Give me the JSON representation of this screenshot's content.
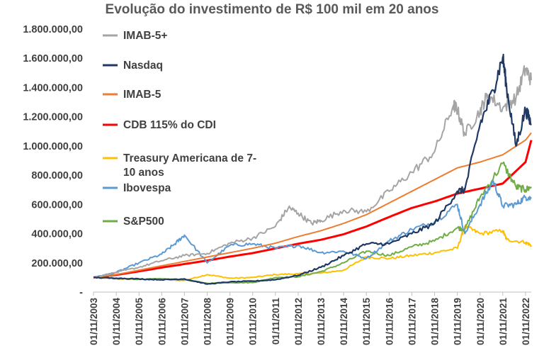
{
  "chart_data": {
    "type": "line",
    "title": "Evolução do investimento de R$ 100 mil em 20 anos",
    "xlabel": "",
    "ylabel": "",
    "x_ticks": [
      "01/11/2003",
      "01/11/2004",
      "01/11/2005",
      "01/11/2006",
      "01/11/2007",
      "01/11/2008",
      "01/11/2009",
      "01/11/2010",
      "01/11/2011",
      "01/11/2012",
      "01/11/2013",
      "01/11/2014",
      "01/11/2015",
      "01/11/2016",
      "01/11/2017",
      "01/11/2018",
      "01/11/2019",
      "01/11/2020",
      "01/11/2021",
      "01/11/2022"
    ],
    "y_ticks": [
      {
        "value": 0,
        "label": "-"
      },
      {
        "value": 200000,
        "label": "200.000,00"
      },
      {
        "value": 400000,
        "label": "400.000,00"
      },
      {
        "value": 600000,
        "label": "600.000,00"
      },
      {
        "value": 800000,
        "label": "800.000,00"
      },
      {
        "value": 1000000,
        "label": "1.000.000,00"
      },
      {
        "value": 1200000,
        "label": "1.200.000,00"
      },
      {
        "value": 1400000,
        "label": "1.400.000,00"
      },
      {
        "value": 1600000,
        "label": "1.600.000,00"
      },
      {
        "value": 1800000,
        "label": "1.800.000,00"
      }
    ],
    "ylim": [
      0,
      1800000
    ],
    "xlim": [
      "2003-11-01",
      "2023-02-01"
    ],
    "grid": false,
    "legend_position": "top-left",
    "series": [
      {
        "name": "IMAB-5+",
        "color": "#a5a5a5",
        "width": 2,
        "points": [
          [
            "2003-11-01",
            100000
          ],
          [
            "2004-11-01",
            135000
          ],
          [
            "2005-11-01",
            170000
          ],
          [
            "2006-11-01",
            215000
          ],
          [
            "2007-11-01",
            250000
          ],
          [
            "2008-11-01",
            265000
          ],
          [
            "2009-11-01",
            335000
          ],
          [
            "2010-11-01",
            370000
          ],
          [
            "2011-11-01",
            450000
          ],
          [
            "2012-06-01",
            580000
          ],
          [
            "2012-11-01",
            540000
          ],
          [
            "2013-06-01",
            470000
          ],
          [
            "2013-11-01",
            490000
          ],
          [
            "2014-11-01",
            560000
          ],
          [
            "2015-11-01",
            550000
          ],
          [
            "2016-11-01",
            690000
          ],
          [
            "2017-11-01",
            820000
          ],
          [
            "2018-11-01",
            960000
          ],
          [
            "2019-09-01",
            1280000
          ],
          [
            "2019-11-01",
            1250000
          ],
          [
            "2020-03-01",
            1080000
          ],
          [
            "2020-11-01",
            1240000
          ],
          [
            "2021-03-01",
            1350000
          ],
          [
            "2021-11-01",
            1260000
          ],
          [
            "2022-06-01",
            1330000
          ],
          [
            "2022-11-01",
            1530000
          ],
          [
            "2023-02-01",
            1450000
          ]
        ]
      },
      {
        "name": "Nasdaq",
        "color": "#203864",
        "width": 2.2,
        "points": [
          [
            "2003-11-01",
            100000
          ],
          [
            "2004-11-01",
            95000
          ],
          [
            "2005-11-01",
            90000
          ],
          [
            "2006-11-01",
            85000
          ],
          [
            "2007-11-01",
            90000
          ],
          [
            "2008-11-01",
            55000
          ],
          [
            "2009-11-01",
            70000
          ],
          [
            "2010-11-01",
            75000
          ],
          [
            "2011-11-01",
            85000
          ],
          [
            "2012-11-01",
            115000
          ],
          [
            "2013-11-01",
            170000
          ],
          [
            "2014-11-01",
            250000
          ],
          [
            "2015-11-01",
            330000
          ],
          [
            "2016-11-01",
            330000
          ],
          [
            "2017-11-01",
            400000
          ],
          [
            "2018-11-01",
            470000
          ],
          [
            "2019-11-01",
            690000
          ],
          [
            "2020-03-01",
            700000
          ],
          [
            "2020-11-01",
            1150000
          ],
          [
            "2021-06-01",
            1380000
          ],
          [
            "2021-11-01",
            1610000
          ],
          [
            "2022-01-01",
            1400000
          ],
          [
            "2022-06-01",
            1000000
          ],
          [
            "2022-11-01",
            1250000
          ],
          [
            "2023-02-01",
            1150000
          ]
        ]
      },
      {
        "name": "IMAB-5",
        "color": "#ed7d31",
        "width": 2,
        "points": [
          [
            "2003-11-01",
            100000
          ],
          [
            "2004-11-01",
            120000
          ],
          [
            "2005-11-01",
            150000
          ],
          [
            "2006-11-01",
            180000
          ],
          [
            "2007-11-01",
            210000
          ],
          [
            "2008-11-01",
            240000
          ],
          [
            "2009-11-01",
            270000
          ],
          [
            "2010-11-01",
            300000
          ],
          [
            "2011-11-01",
            335000
          ],
          [
            "2012-11-01",
            380000
          ],
          [
            "2013-11-01",
            420000
          ],
          [
            "2014-11-01",
            470000
          ],
          [
            "2015-11-01",
            530000
          ],
          [
            "2016-11-01",
            610000
          ],
          [
            "2017-11-01",
            690000
          ],
          [
            "2018-11-01",
            770000
          ],
          [
            "2019-11-01",
            850000
          ],
          [
            "2020-11-01",
            890000
          ],
          [
            "2021-11-01",
            940000
          ],
          [
            "2022-11-01",
            1040000
          ],
          [
            "2023-02-01",
            1090000
          ]
        ]
      },
      {
        "name": "CDB 115% do CDI",
        "color": "#ff0000",
        "width": 3,
        "points": [
          [
            "2003-11-01",
            100000
          ],
          [
            "2004-11-01",
            118000
          ],
          [
            "2005-11-01",
            142000
          ],
          [
            "2006-11-01",
            168000
          ],
          [
            "2007-11-01",
            192000
          ],
          [
            "2008-11-01",
            216000
          ],
          [
            "2009-11-01",
            243000
          ],
          [
            "2010-11-01",
            267000
          ],
          [
            "2011-11-01",
            299000
          ],
          [
            "2012-11-01",
            331000
          ],
          [
            "2013-11-01",
            358000
          ],
          [
            "2014-11-01",
            396000
          ],
          [
            "2015-11-01",
            449000
          ],
          [
            "2016-11-01",
            514000
          ],
          [
            "2017-11-01",
            576000
          ],
          [
            "2018-11-01",
            620000
          ],
          [
            "2019-11-01",
            674000
          ],
          [
            "2020-11-01",
            708000
          ],
          [
            "2021-11-01",
            743000
          ],
          [
            "2022-11-01",
            890000
          ],
          [
            "2023-02-01",
            1040000
          ]
        ]
      },
      {
        "name": "Treasury Americana de 7-10 anos",
        "name_lines": [
          "Treasury Americana de 7-",
          "10 anos"
        ],
        "color": "#ffc000",
        "width": 2,
        "points": [
          [
            "2003-11-01",
            100000
          ],
          [
            "2004-11-01",
            92000
          ],
          [
            "2005-11-01",
            88000
          ],
          [
            "2006-11-01",
            85000
          ],
          [
            "2007-11-01",
            80000
          ],
          [
            "2008-11-01",
            120000
          ],
          [
            "2009-11-01",
            95000
          ],
          [
            "2010-11-01",
            100000
          ],
          [
            "2011-11-01",
            120000
          ],
          [
            "2012-11-01",
            125000
          ],
          [
            "2013-11-01",
            130000
          ],
          [
            "2014-11-01",
            150000
          ],
          [
            "2015-11-01",
            240000
          ],
          [
            "2016-11-01",
            230000
          ],
          [
            "2017-11-01",
            250000
          ],
          [
            "2018-11-01",
            270000
          ],
          [
            "2019-11-01",
            300000
          ],
          [
            "2020-03-01",
            450000
          ],
          [
            "2020-11-01",
            400000
          ],
          [
            "2021-11-01",
            420000
          ],
          [
            "2022-01-01",
            360000
          ],
          [
            "2022-11-01",
            340000
          ],
          [
            "2023-02-01",
            320000
          ]
        ]
      },
      {
        "name": "Ibovespa",
        "color": "#5b9bd5",
        "width": 2,
        "points": [
          [
            "2003-11-01",
            100000
          ],
          [
            "2004-11-01",
            135000
          ],
          [
            "2005-11-01",
            200000
          ],
          [
            "2006-11-01",
            260000
          ],
          [
            "2007-06-01",
            330000
          ],
          [
            "2007-11-01",
            390000
          ],
          [
            "2008-11-01",
            200000
          ],
          [
            "2009-11-01",
            320000
          ],
          [
            "2010-11-01",
            330000
          ],
          [
            "2011-11-01",
            300000
          ],
          [
            "2012-11-01",
            320000
          ],
          [
            "2013-11-01",
            270000
          ],
          [
            "2014-11-01",
            280000
          ],
          [
            "2015-11-01",
            230000
          ],
          [
            "2016-11-01",
            350000
          ],
          [
            "2017-11-01",
            430000
          ],
          [
            "2018-11-01",
            480000
          ],
          [
            "2019-11-01",
            600000
          ],
          [
            "2020-03-01",
            400000
          ],
          [
            "2020-11-01",
            600000
          ],
          [
            "2021-06-01",
            760000
          ],
          [
            "2021-11-01",
            590000
          ],
          [
            "2022-06-01",
            600000
          ],
          [
            "2022-11-01",
            650000
          ],
          [
            "2023-02-01",
            640000
          ]
        ]
      },
      {
        "name": "S&P500",
        "color": "#70ad47",
        "width": 2,
        "points": [
          [
            "2003-11-01",
            100000
          ],
          [
            "2004-11-01",
            95000
          ],
          [
            "2005-11-01",
            88000
          ],
          [
            "2006-11-01",
            90000
          ],
          [
            "2007-11-01",
            85000
          ],
          [
            "2008-11-01",
            60000
          ],
          [
            "2009-11-01",
            65000
          ],
          [
            "2010-11-01",
            65000
          ],
          [
            "2011-11-01",
            100000
          ],
          [
            "2012-11-01",
            105000
          ],
          [
            "2013-11-01",
            140000
          ],
          [
            "2014-11-01",
            200000
          ],
          [
            "2015-11-01",
            280000
          ],
          [
            "2016-11-01",
            250000
          ],
          [
            "2017-11-01",
            310000
          ],
          [
            "2018-11-01",
            350000
          ],
          [
            "2019-11-01",
            440000
          ],
          [
            "2020-03-01",
            430000
          ],
          [
            "2020-11-01",
            650000
          ],
          [
            "2021-11-01",
            880000
          ],
          [
            "2022-06-01",
            720000
          ],
          [
            "2022-11-01",
            700000
          ],
          [
            "2023-02-01",
            720000
          ]
        ]
      }
    ]
  }
}
